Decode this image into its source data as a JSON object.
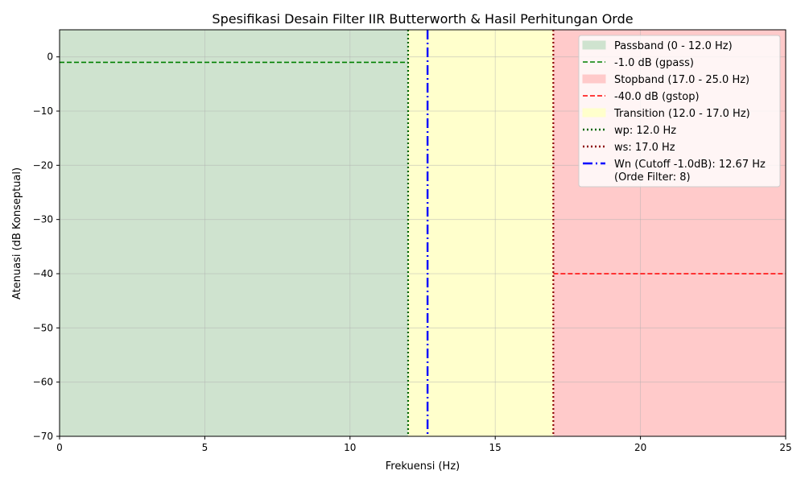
{
  "chart_data": {
    "type": "area",
    "title": "Spesifikasi Desain Filter IIR Butterworth & Hasil Perhitungan Orde",
    "xlabel": "Frekuensi (Hz)",
    "ylabel": "Atenuasi (dB Konseptual)",
    "xlim": [
      0,
      25
    ],
    "ylim": [
      -70,
      5
    ],
    "xticks": [
      0,
      5,
      10,
      15,
      20,
      25
    ],
    "xtick_labels": [
      "0",
      "5",
      "10",
      "15",
      "20",
      "25"
    ],
    "yticks": [
      0,
      -10,
      -20,
      -30,
      -40,
      -50,
      -60,
      -70
    ],
    "ytick_labels": [
      "0",
      "−10",
      "−20",
      "−30",
      "−40",
      "−50",
      "−60",
      "−70"
    ],
    "grid": true,
    "legend_position": "top-right",
    "bands": [
      {
        "label": "Passband (0 - 12.0 Hz)",
        "x0": 0,
        "x1": 12.0,
        "color": "#cfe3cf"
      },
      {
        "label": "Transition (12.0 - 17.0 Hz)",
        "x0": 12.0,
        "x1": 17.0,
        "color": "#ffffcc"
      },
      {
        "label": "Stopband (17.0 - 25.0 Hz)",
        "x0": 17.0,
        "x1": 25.0,
        "color": "#ffcaca"
      }
    ],
    "hlines": [
      {
        "label": "-1.0 dB (gpass)",
        "y": -1.0,
        "x0": 0,
        "x1": 12.0,
        "color": "#008000",
        "style": "dashed"
      },
      {
        "label": "-40.0 dB (gstop)",
        "y": -40.0,
        "x0": 17.0,
        "x1": 25.0,
        "color": "#ff0000",
        "style": "dashed"
      }
    ],
    "vlines": [
      {
        "label": "wp: 12.0 Hz",
        "x": 12.0,
        "color": "#006400",
        "style": "dotted"
      },
      {
        "label": "ws: 17.0 Hz",
        "x": 17.0,
        "color": "#8b0000",
        "style": "dotted"
      },
      {
        "label": "Wn (Cutoff -1.0dB): 12.67 Hz",
        "label_line2": "(Orde Filter: 8)",
        "x": 12.67,
        "color": "#0000ff",
        "style": "dashdot"
      }
    ],
    "legend": [
      {
        "label": "Passband (0 - 12.0 Hz)",
        "kind": "patch",
        "color": "#cfe3cf"
      },
      {
        "label": "-1.0 dB (gpass)",
        "kind": "dashed",
        "color": "#008000"
      },
      {
        "label": "Stopband (17.0 - 25.0 Hz)",
        "kind": "patch",
        "color": "#ffcaca"
      },
      {
        "label": "-40.0 dB (gstop)",
        "kind": "dashed",
        "color": "#ff0000"
      },
      {
        "label": "Transition (12.0 - 17.0 Hz)",
        "kind": "patch",
        "color": "#ffffcc"
      },
      {
        "label": "wp: 12.0 Hz",
        "kind": "dotted",
        "color": "#006400"
      },
      {
        "label": "ws: 17.0 Hz",
        "kind": "dotted",
        "color": "#8b0000"
      },
      {
        "label": "Wn (Cutoff -1.0dB): 12.67 Hz",
        "label_line2": "(Orde Filter: 8)",
        "kind": "dashdot",
        "color": "#0000ff"
      }
    ]
  }
}
